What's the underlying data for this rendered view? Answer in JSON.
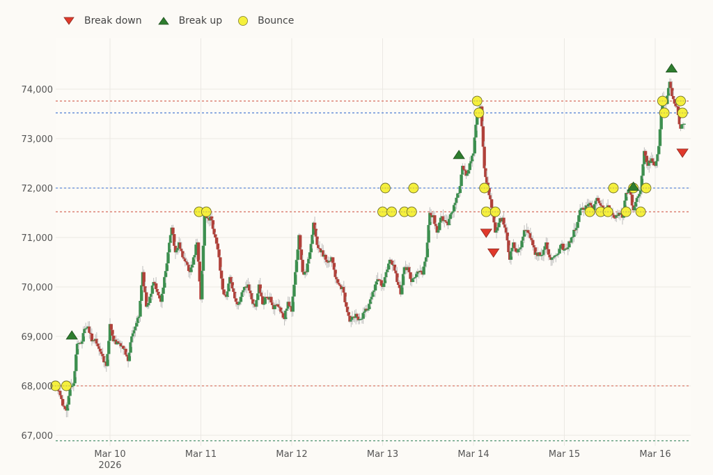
{
  "legend": {
    "items": [
      {
        "label": "Break down",
        "symbol": "triangle-down",
        "color": "#e0392b"
      },
      {
        "label": "Break up",
        "symbol": "triangle-up",
        "color": "#2e7d2e"
      },
      {
        "label": "Bounce",
        "symbol": "circle",
        "color": "#f5f03c"
      }
    ]
  },
  "colors": {
    "background": "#fcfaf6",
    "plot_bg": "#fdfbf7",
    "grid": "#ebe8e3",
    "up_candle": "#3d8f4f",
    "down_candle": "#b0413a",
    "wick": "#bdbdbd",
    "level_red": "#d9786a",
    "level_blue": "#5b86d6",
    "level_green": "#5a9a7a"
  },
  "chart_data": {
    "type": "candlestick",
    "title": "",
    "xlabel": "",
    "ylabel": "",
    "ylim": [
      66850,
      74950
    ],
    "y_ticks": [
      67000,
      68000,
      69000,
      70000,
      71000,
      72000,
      73000,
      74000
    ],
    "y_tick_labels": [
      "67,000",
      "68,000",
      "69,000",
      "70,000",
      "71,000",
      "72,000",
      "73,000",
      "74,000"
    ],
    "x_ticks": [
      {
        "day": 1,
        "label": "Mar 10",
        "sublabel": "2026"
      },
      {
        "day": 2,
        "label": "Mar 11",
        "sublabel": ""
      },
      {
        "day": 3,
        "label": "Mar 12",
        "sublabel": ""
      },
      {
        "day": 4,
        "label": "Mar 13",
        "sublabel": ""
      },
      {
        "day": 5,
        "label": "Mar 14",
        "sublabel": ""
      },
      {
        "day": 6,
        "label": "Mar 15",
        "sublabel": ""
      },
      {
        "day": 7,
        "label": "Mar 16",
        "sublabel": ""
      }
    ],
    "x_range_days": [
      0.4,
      7.32
    ],
    "levels": [
      {
        "price": 73760,
        "color": "red"
      },
      {
        "price": 73520,
        "color": "blue"
      },
      {
        "price": 72000,
        "color": "blue"
      },
      {
        "price": 71520,
        "color": "red"
      },
      {
        "price": 68000,
        "color": "red"
      },
      {
        "price": 66890,
        "color": "green"
      }
    ],
    "close_path": [
      [
        0.4,
        68000
      ],
      [
        0.44,
        67900
      ],
      [
        0.48,
        67600
      ],
      [
        0.52,
        67500
      ],
      [
        0.56,
        68000
      ],
      [
        0.6,
        68050
      ],
      [
        0.64,
        68850
      ],
      [
        0.68,
        68850
      ],
      [
        0.72,
        69150
      ],
      [
        0.76,
        69200
      ],
      [
        0.8,
        68900
      ],
      [
        0.84,
        68950
      ],
      [
        0.88,
        68750
      ],
      [
        0.92,
        68600
      ],
      [
        0.96,
        68400
      ],
      [
        1.0,
        69250
      ],
      [
        1.04,
        68900
      ],
      [
        1.08,
        68900
      ],
      [
        1.12,
        68800
      ],
      [
        1.16,
        68750
      ],
      [
        1.2,
        68500
      ],
      [
        1.24,
        69000
      ],
      [
        1.28,
        69200
      ],
      [
        1.32,
        69400
      ],
      [
        1.36,
        70300
      ],
      [
        1.4,
        69600
      ],
      [
        1.44,
        69800
      ],
      [
        1.48,
        70100
      ],
      [
        1.52,
        69900
      ],
      [
        1.56,
        69700
      ],
      [
        1.6,
        70200
      ],
      [
        1.64,
        70700
      ],
      [
        1.68,
        71200
      ],
      [
        1.72,
        70700
      ],
      [
        1.76,
        70900
      ],
      [
        1.8,
        70600
      ],
      [
        1.84,
        70500
      ],
      [
        1.88,
        70300
      ],
      [
        1.92,
        70600
      ],
      [
        1.96,
        70900
      ],
      [
        2.0,
        69750
      ],
      [
        2.04,
        71450
      ],
      [
        2.08,
        71400
      ],
      [
        2.12,
        71350
      ],
      [
        2.16,
        71000
      ],
      [
        2.2,
        70600
      ],
      [
        2.24,
        69950
      ],
      [
        2.28,
        69800
      ],
      [
        2.32,
        70200
      ],
      [
        2.36,
        69900
      ],
      [
        2.4,
        69650
      ],
      [
        2.44,
        69800
      ],
      [
        2.48,
        70000
      ],
      [
        2.52,
        70050
      ],
      [
        2.56,
        69750
      ],
      [
        2.6,
        69600
      ],
      [
        2.64,
        70050
      ],
      [
        2.68,
        69650
      ],
      [
        2.72,
        69800
      ],
      [
        2.76,
        69800
      ],
      [
        2.8,
        69550
      ],
      [
        2.84,
        69650
      ],
      [
        2.88,
        69500
      ],
      [
        2.92,
        69350
      ],
      [
        2.96,
        69700
      ],
      [
        3.0,
        69500
      ],
      [
        3.04,
        70300
      ],
      [
        3.08,
        71050
      ],
      [
        3.12,
        70300
      ],
      [
        3.16,
        70300
      ],
      [
        3.2,
        70700
      ],
      [
        3.24,
        71300
      ],
      [
        3.28,
        70850
      ],
      [
        3.32,
        70700
      ],
      [
        3.36,
        70650
      ],
      [
        3.4,
        70500
      ],
      [
        3.44,
        70600
      ],
      [
        3.48,
        70200
      ],
      [
        3.52,
        70050
      ],
      [
        3.56,
        70000
      ],
      [
        3.6,
        69600
      ],
      [
        3.64,
        69300
      ],
      [
        3.68,
        69400
      ],
      [
        3.72,
        69400
      ],
      [
        3.76,
        69350
      ],
      [
        3.8,
        69500
      ],
      [
        3.84,
        69550
      ],
      [
        3.88,
        69800
      ],
      [
        3.92,
        70050
      ],
      [
        3.96,
        70150
      ],
      [
        4.0,
        70000
      ],
      [
        4.04,
        70300
      ],
      [
        4.08,
        70550
      ],
      [
        4.12,
        70450
      ],
      [
        4.16,
        70100
      ],
      [
        4.2,
        69850
      ],
      [
        4.24,
        70400
      ],
      [
        4.28,
        70400
      ],
      [
        4.32,
        70100
      ],
      [
        4.36,
        70200
      ],
      [
        4.4,
        70300
      ],
      [
        4.44,
        70250
      ],
      [
        4.48,
        70600
      ],
      [
        4.52,
        71500
      ],
      [
        4.56,
        71450
      ],
      [
        4.6,
        71100
      ],
      [
        4.64,
        71400
      ],
      [
        4.68,
        71350
      ],
      [
        4.72,
        71250
      ],
      [
        4.76,
        71500
      ],
      [
        4.8,
        71700
      ],
      [
        4.84,
        71900
      ],
      [
        4.88,
        72450
      ],
      [
        4.92,
        72250
      ],
      [
        4.96,
        72500
      ],
      [
        5.0,
        72700
      ],
      [
        5.04,
        73500
      ],
      [
        5.08,
        73650
      ],
      [
        5.12,
        72400
      ],
      [
        5.16,
        72000
      ],
      [
        5.2,
        71600
      ],
      [
        5.24,
        71100
      ],
      [
        5.28,
        71300
      ],
      [
        5.32,
        71400
      ],
      [
        5.36,
        71100
      ],
      [
        5.4,
        70550
      ],
      [
        5.44,
        70900
      ],
      [
        5.48,
        70700
      ],
      [
        5.52,
        70800
      ],
      [
        5.56,
        71150
      ],
      [
        5.6,
        71100
      ],
      [
        5.64,
        70950
      ],
      [
        5.68,
        70650
      ],
      [
        5.72,
        70700
      ],
      [
        5.76,
        70650
      ],
      [
        5.8,
        70900
      ],
      [
        5.84,
        70600
      ],
      [
        5.88,
        70600
      ],
      [
        5.92,
        70650
      ],
      [
        5.96,
        70850
      ],
      [
        6.0,
        70750
      ],
      [
        6.04,
        70800
      ],
      [
        6.08,
        71000
      ],
      [
        6.12,
        71150
      ],
      [
        6.16,
        71450
      ],
      [
        6.2,
        71600
      ],
      [
        6.24,
        71650
      ],
      [
        6.28,
        71700
      ],
      [
        6.32,
        71550
      ],
      [
        6.36,
        71800
      ],
      [
        6.4,
        71650
      ],
      [
        6.44,
        71500
      ],
      [
        6.48,
        71650
      ],
      [
        6.52,
        71500
      ],
      [
        6.56,
        71400
      ],
      [
        6.6,
        71500
      ],
      [
        6.64,
        71400
      ],
      [
        6.68,
        71900
      ],
      [
        6.72,
        71950
      ],
      [
        6.76,
        71550
      ],
      [
        6.8,
        71800
      ],
      [
        6.84,
        71950
      ],
      [
        6.88,
        72750
      ],
      [
        6.92,
        72450
      ],
      [
        6.96,
        72600
      ],
      [
        7.0,
        72450
      ],
      [
        7.04,
        72850
      ],
      [
        7.08,
        73850
      ],
      [
        7.12,
        73700
      ],
      [
        7.16,
        74150
      ],
      [
        7.2,
        73800
      ],
      [
        7.24,
        73650
      ],
      [
        7.28,
        73200
      ],
      [
        7.32,
        73300
      ]
    ],
    "markers": {
      "break_down": [
        [
          5.14,
          71100
        ],
        [
          5.22,
          70700
        ],
        [
          7.3,
          72720
        ]
      ],
      "break_up": [
        [
          0.58,
          69000
        ],
        [
          4.84,
          72650
        ],
        [
          6.76,
          72010
        ],
        [
          7.18,
          74400
        ]
      ],
      "bounce": [
        [
          0.4,
          68000
        ],
        [
          0.52,
          68000
        ],
        [
          1.98,
          71520
        ],
        [
          2.06,
          71520
        ],
        [
          4.0,
          71520
        ],
        [
          4.03,
          72000
        ],
        [
          4.1,
          71520
        ],
        [
          4.24,
          71520
        ],
        [
          4.32,
          71520
        ],
        [
          4.34,
          72000
        ],
        [
          5.04,
          73760
        ],
        [
          5.06,
          73520
        ],
        [
          5.12,
          72000
        ],
        [
          5.14,
          71520
        ],
        [
          5.24,
          71520
        ],
        [
          6.28,
          71520
        ],
        [
          6.4,
          71520
        ],
        [
          6.48,
          71520
        ],
        [
          6.54,
          72000
        ],
        [
          6.68,
          71520
        ],
        [
          6.76,
          72000
        ],
        [
          6.84,
          71520
        ],
        [
          6.9,
          72000
        ],
        [
          7.08,
          73760
        ],
        [
          7.1,
          73520
        ],
        [
          7.28,
          73760
        ],
        [
          7.3,
          73520
        ]
      ]
    }
  }
}
